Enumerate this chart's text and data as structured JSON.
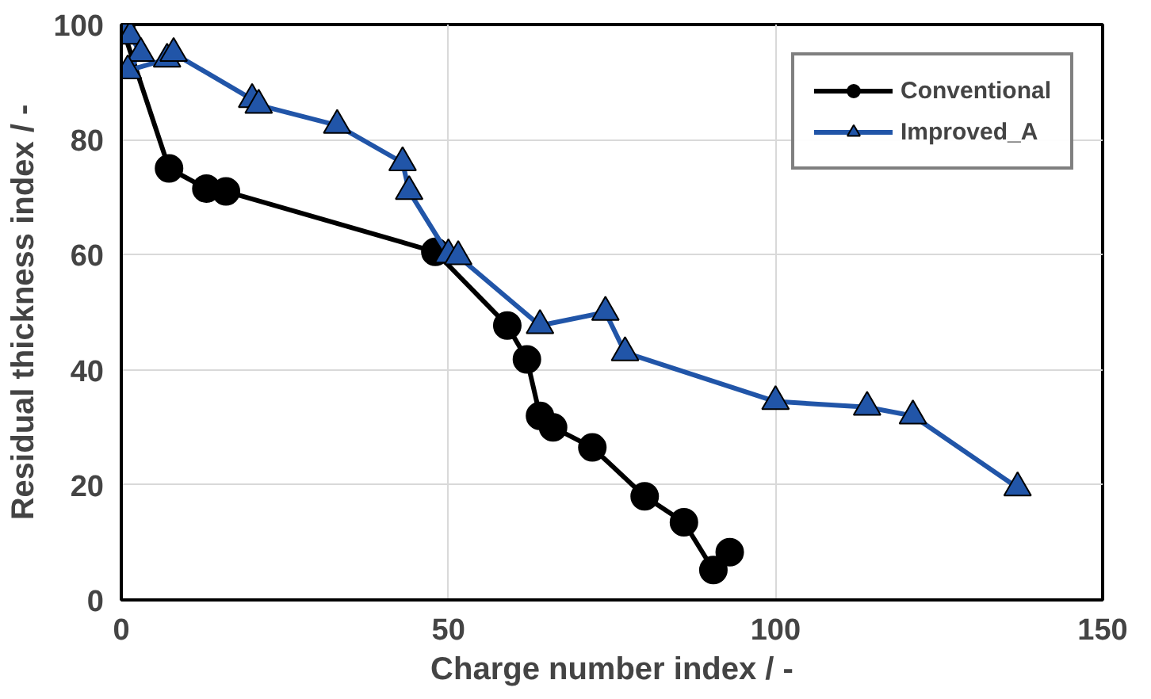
{
  "chart_data": {
    "type": "line",
    "xlabel": "Charge number index / -",
    "ylabel": "Residual thickness index / -",
    "xlim": [
      0,
      150
    ],
    "ylim": [
      0,
      100
    ],
    "xticks": [
      0,
      50,
      100,
      150
    ],
    "yticks": [
      0,
      20,
      40,
      60,
      80,
      100
    ],
    "grid": true,
    "legend": "top right",
    "line_style": "solid",
    "series": [
      {
        "name": "Conventional",
        "color": "#000000",
        "marker": "circle",
        "x": [
          0,
          7.3,
          13,
          16,
          48,
          59,
          62,
          64,
          66,
          72,
          80,
          86,
          90.5,
          93
        ],
        "values": [
          100,
          75,
          71.5,
          71,
          60.5,
          47.7,
          41.8,
          32,
          30,
          26.5,
          18,
          13.5,
          5.2,
          8.3
        ]
      },
      {
        "name": "Improved_A",
        "color": "#2155a8",
        "marker": "triangle",
        "x": [
          0,
          1.4,
          3,
          1,
          7,
          8,
          20,
          21,
          33,
          43,
          44,
          50,
          51.5,
          64,
          74,
          77,
          100,
          114,
          121,
          137
        ],
        "values": [
          100,
          98,
          95,
          92,
          94,
          95,
          87,
          86,
          82.5,
          76,
          71,
          60,
          59.7,
          47.7,
          50,
          43,
          34.5,
          33.5,
          32,
          19.5
        ]
      }
    ]
  }
}
